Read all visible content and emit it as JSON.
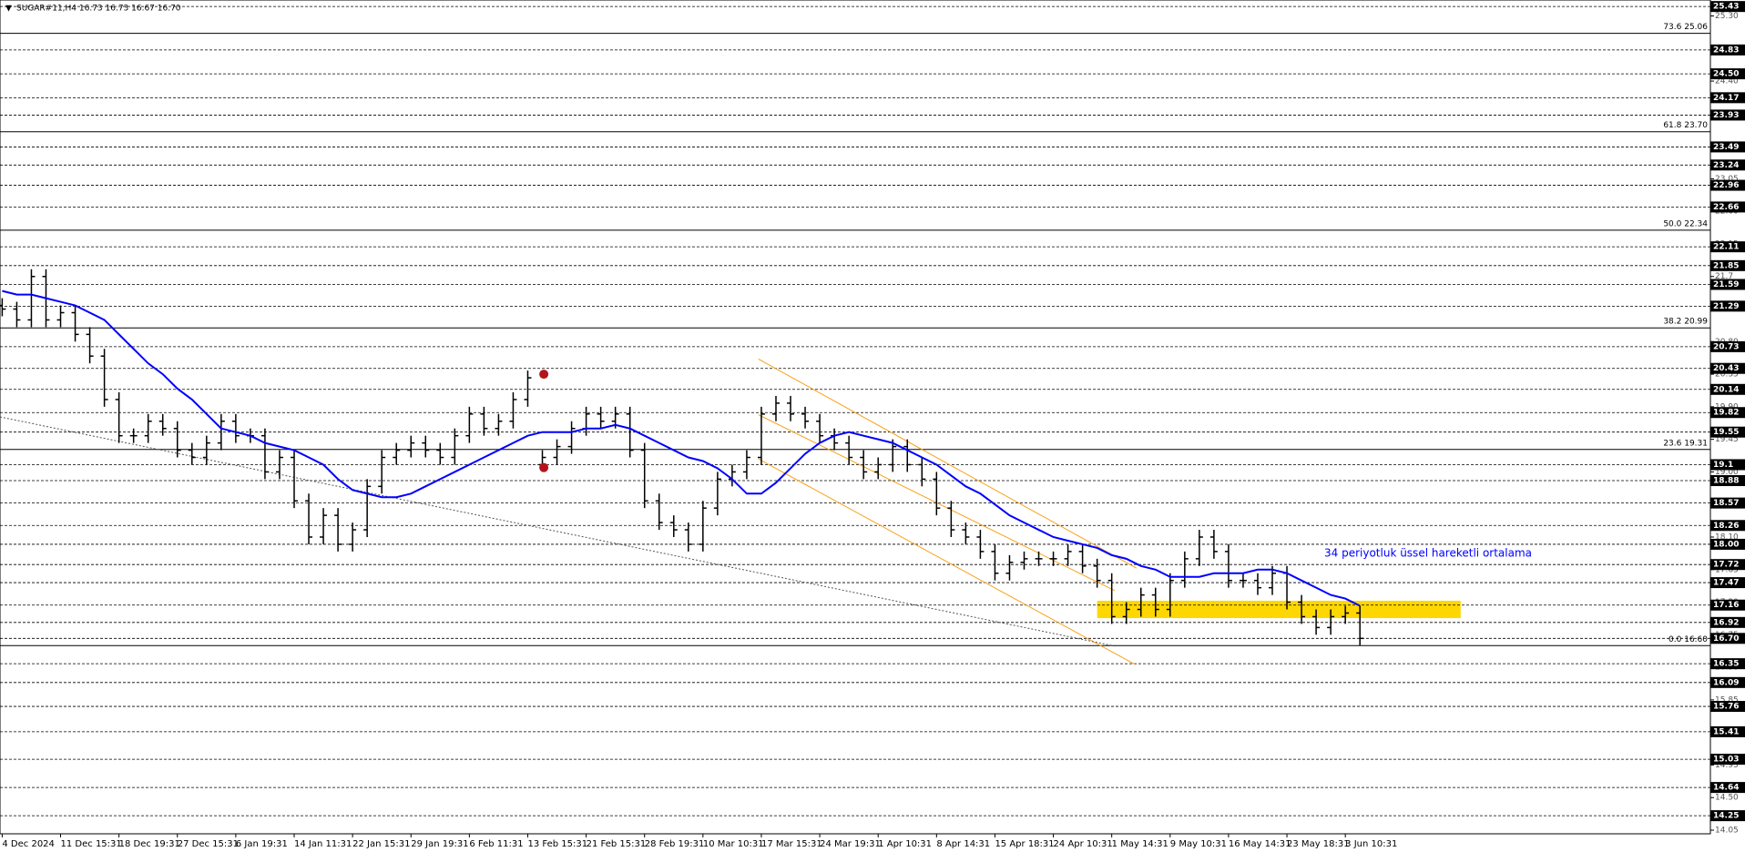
{
  "chart_data": {
    "type": "ohlc",
    "title": "SUGAR#11,H4  16.73 16.73 16.67 16.70",
    "annotation": "34 periyotluk üssel hareketli ortalama",
    "ylim": [
      14.0,
      25.52
    ],
    "yticks": [
      14.05,
      {
        "value": 14.5,
        "label": "14.50"
      },
      14.95,
      {
        "value": 15.4,
        "label": "15.40"
      },
      15.85,
      {
        "value": 16.3,
        "label": "16.30"
      },
      16.75,
      {
        "value": 17.2,
        "label": "17.20"
      },
      17.65,
      {
        "value": 18.1,
        "label": "18.10"
      },
      18.55,
      {
        "value": 19.0,
        "label": "19.00"
      },
      19.45,
      {
        "value": 19.9,
        "label": "19.90"
      },
      20.35,
      {
        "value": 20.8,
        "label": "20.80"
      },
      21.25,
      21.7,
      22.15,
      {
        "value": 22.6,
        "label": "22.60"
      },
      23.05,
      {
        "value": 23.5,
        "label": "23.50"
      },
      23.95,
      {
        "value": 24.4,
        "label": "24.40"
      },
      24.85,
      {
        "value": 25.3,
        "label": "25.30"
      }
    ],
    "levels": [
      25.43,
      24.83,
      {
        "value": 24.5,
        "label": "24.50"
      },
      24.17,
      23.93,
      23.49,
      23.24,
      22.96,
      22.66,
      22.11,
      21.85,
      21.59,
      21.29,
      20.73,
      20.43,
      20.14,
      19.82,
      19.55,
      19.1,
      18.88,
      18.57,
      18.26,
      {
        "value": 18.0,
        "label": "18.00"
      },
      17.72,
      17.47,
      17.16,
      16.92,
      {
        "value": 16.7,
        "label": "16.70"
      },
      16.35,
      16.09,
      15.76,
      15.41,
      15.03,
      14.64,
      14.25
    ],
    "fibonacci": [
      {
        "value": 25.06,
        "label": "73.6 25.06"
      },
      {
        "value": 23.7,
        "label": "61.8 23.70"
      },
      {
        "value": 22.34,
        "label": "50.0 22.34"
      },
      {
        "value": 20.99,
        "label": "38.2 20.99"
      },
      {
        "value": 19.31,
        "label": "23.6 19.31"
      },
      {
        "value": 16.6,
        "label": "0.0 16.60"
      }
    ],
    "categories": [
      "4 Dec 2024",
      null,
      null,
      null,
      "11 Dec 15:31",
      null,
      null,
      null,
      "18 Dec 19:31",
      null,
      null,
      null,
      "27 Dec 15:31",
      null,
      null,
      null,
      "6 Jan 19:31",
      null,
      null,
      null,
      "14 Jan 11:31",
      null,
      null,
      null,
      "22 Jan 15:31",
      null,
      null,
      null,
      "29 Jan 19:31",
      null,
      null,
      null,
      "6 Feb 11:31",
      null,
      null,
      null,
      "13 Feb 15:31",
      null,
      null,
      null,
      "21 Feb 15:31",
      null,
      null,
      null,
      "28 Feb 19:31",
      null,
      null,
      null,
      "10 Mar 10:31",
      null,
      null,
      null,
      "17 Mar 15:31",
      null,
      null,
      null,
      "24 Mar 19:31",
      null,
      null,
      null,
      "1 Apr 10:31",
      null,
      null,
      null,
      "8 Apr 14:31",
      null,
      null,
      null,
      "15 Apr 18:31",
      null,
      null,
      null,
      "24 Apr 10:31",
      null,
      null,
      null,
      "1 May 14:31",
      null,
      null,
      null,
      "9 May 10:31",
      null,
      null,
      null,
      "16 May 14:31",
      null,
      null,
      null,
      "23 May 18:31",
      null,
      null,
      null,
      "3 Jun 10:31",
      null
    ],
    "open": [
      21.3,
      21.25,
      21.1,
      21.7,
      21.1,
      21.2,
      20.9,
      20.6,
      20.0,
      19.5,
      19.5,
      19.7,
      19.6,
      19.3,
      19.2,
      19.4,
      19.7,
      19.5,
      19.5,
      19.0,
      19.2,
      18.6,
      18.1,
      18.4,
      18.0,
      18.2,
      18.8,
      19.2,
      19.3,
      19.4,
      19.3,
      19.2,
      19.5,
      19.8,
      19.6,
      19.7,
      20.0,
      19.1,
      19.2,
      19.35,
      19.6,
      19.8,
      19.7,
      19.8,
      19.3,
      18.6,
      18.3,
      18.2,
      18.0,
      18.5,
      18.9,
      19.0,
      19.2,
      19.8,
      19.95,
      19.8,
      19.7,
      19.5,
      19.4,
      19.2,
      19.0,
      19.1,
      19.35,
      19.1,
      18.9,
      18.5,
      18.2,
      18.1,
      17.9,
      17.6,
      17.75,
      17.8,
      17.8,
      17.8,
      17.9,
      17.7,
      17.5,
      17.0,
      17.1,
      17.3,
      17.1,
      17.5,
      17.8,
      18.1,
      17.9,
      17.5,
      17.5,
      17.4,
      17.6,
      17.2,
      17.0,
      16.85,
      17.0,
      17.05
    ],
    "high": [
      21.4,
      21.35,
      21.8,
      21.8,
      21.3,
      21.3,
      21.0,
      20.7,
      20.1,
      19.6,
      19.8,
      19.8,
      19.7,
      19.4,
      19.5,
      19.8,
      19.8,
      19.6,
      19.6,
      19.3,
      19.3,
      18.7,
      18.5,
      18.5,
      18.3,
      18.9,
      19.3,
      19.4,
      19.5,
      19.5,
      19.4,
      19.6,
      19.9,
      19.9,
      19.8,
      20.1,
      20.4,
      19.3,
      19.45,
      19.7,
      19.9,
      19.9,
      19.9,
      19.9,
      19.4,
      18.7,
      18.4,
      18.3,
      18.6,
      19.0,
      19.1,
      19.3,
      19.9,
      20.05,
      20.05,
      19.9,
      19.8,
      19.6,
      19.5,
      19.3,
      19.2,
      19.45,
      19.45,
      19.2,
      19.0,
      18.6,
      18.3,
      18.2,
      18.0,
      17.85,
      17.9,
      17.9,
      17.9,
      18.0,
      18.0,
      17.8,
      17.6,
      17.2,
      17.4,
      17.4,
      17.6,
      17.9,
      18.2,
      18.2,
      18.0,
      17.6,
      17.6,
      17.7,
      17.7,
      17.3,
      17.1,
      17.1,
      17.15,
      17.15
    ],
    "low": [
      21.15,
      21.0,
      21.0,
      21.0,
      21.0,
      20.8,
      20.5,
      19.9,
      19.4,
      19.4,
      19.4,
      19.5,
      19.2,
      19.1,
      19.1,
      19.3,
      19.4,
      19.4,
      18.9,
      18.9,
      18.5,
      18.0,
      18.0,
      17.9,
      17.9,
      18.1,
      18.7,
      19.1,
      19.2,
      19.2,
      19.1,
      19.1,
      19.4,
      19.5,
      19.5,
      19.6,
      19.9,
      19.0,
      19.1,
      19.25,
      19.5,
      19.6,
      19.6,
      19.2,
      18.5,
      18.2,
      18.1,
      17.9,
      17.9,
      18.4,
      18.8,
      18.9,
      19.1,
      19.7,
      19.7,
      19.6,
      19.4,
      19.3,
      19.1,
      18.9,
      18.9,
      19.0,
      19.0,
      18.8,
      18.4,
      18.1,
      18.0,
      17.8,
      17.5,
      17.5,
      17.65,
      17.7,
      17.7,
      17.7,
      17.6,
      17.4,
      16.9,
      16.9,
      17.0,
      17.0,
      17.0,
      17.4,
      17.7,
      17.8,
      17.4,
      17.4,
      17.3,
      17.3,
      17.1,
      16.9,
      16.75,
      16.75,
      16.9,
      16.6
    ],
    "close": [
      21.25,
      21.1,
      21.7,
      21.1,
      21.2,
      20.9,
      20.6,
      20.0,
      19.5,
      19.5,
      19.7,
      19.6,
      19.3,
      19.2,
      19.4,
      19.7,
      19.5,
      19.5,
      19.0,
      19.2,
      18.6,
      18.1,
      18.4,
      18.0,
      18.2,
      18.8,
      19.2,
      19.3,
      19.4,
      19.3,
      19.2,
      19.5,
      19.8,
      19.6,
      19.7,
      20.0,
      20.3,
      19.2,
      19.35,
      19.6,
      19.8,
      19.7,
      19.8,
      19.3,
      18.6,
      18.3,
      18.2,
      18.0,
      18.5,
      18.9,
      19.0,
      19.2,
      19.8,
      19.95,
      19.8,
      19.7,
      19.5,
      19.4,
      19.2,
      19.0,
      19.1,
      19.35,
      19.1,
      18.9,
      18.5,
      18.2,
      18.1,
      17.9,
      17.6,
      17.75,
      17.8,
      17.8,
      17.8,
      17.9,
      17.7,
      17.5,
      17.0,
      17.1,
      17.3,
      17.1,
      17.5,
      17.8,
      18.1,
      17.9,
      17.5,
      17.5,
      17.4,
      17.6,
      17.2,
      17.0,
      16.85,
      17.0,
      17.05,
      16.7
    ],
    "bar_color": "#000000",
    "ema": {
      "color": "#0000ff",
      "values": [
        21.5,
        21.45,
        21.45,
        21.4,
        21.35,
        21.3,
        21.2,
        21.1,
        20.9,
        20.7,
        20.5,
        20.35,
        20.15,
        20.0,
        19.8,
        19.6,
        19.55,
        19.5,
        19.4,
        19.35,
        19.3,
        19.2,
        19.1,
        18.9,
        18.75,
        18.7,
        18.65,
        18.65,
        18.7,
        18.8,
        18.9,
        19.0,
        19.1,
        19.2,
        19.3,
        19.4,
        19.5,
        19.55,
        19.55,
        19.55,
        19.6,
        19.6,
        19.65,
        19.6,
        19.5,
        19.4,
        19.3,
        19.2,
        19.15,
        19.05,
        18.9,
        18.7,
        18.7,
        18.85,
        19.05,
        19.25,
        19.4,
        19.5,
        19.55,
        19.5,
        19.45,
        19.4,
        19.3,
        19.2,
        19.1,
        18.95,
        18.8,
        18.7,
        18.55,
        18.4,
        18.3,
        18.2,
        18.1,
        18.05,
        18.0,
        17.95,
        17.85,
        17.8,
        17.7,
        17.65,
        17.55,
        17.55,
        17.55,
        17.6,
        17.6,
        17.6,
        17.65,
        17.65,
        17.6,
        17.5,
        17.4,
        17.3,
        17.25,
        17.15
      ]
    },
    "trendlines": [
      {
        "color": "#f7a21b",
        "x": [
          51.8,
          77.7
        ],
        "values": [
          20.56,
          17.67
        ]
      },
      {
        "color": "#f7a21b",
        "x": [
          51.8,
          76.2
        ],
        "values": [
          19.79,
          17.36
        ]
      },
      {
        "color": "#f7a21b",
        "x": [
          51.8,
          77.6
        ],
        "values": [
          19.18,
          16.34
        ]
      },
      {
        "color": "#555555",
        "x": [
          -0.15,
          76.3
        ],
        "values": [
          19.76,
          16.59
        ]
      }
    ],
    "zone": {
      "color": "#ffd700",
      "x": [
        75.0,
        99.9
      ],
      "values": [
        17.22,
        16.98
      ]
    },
    "markers": {
      "color": "#b3141c",
      "x": [
        37.1,
        37.1
      ],
      "values": [
        20.35,
        19.06
      ]
    }
  }
}
